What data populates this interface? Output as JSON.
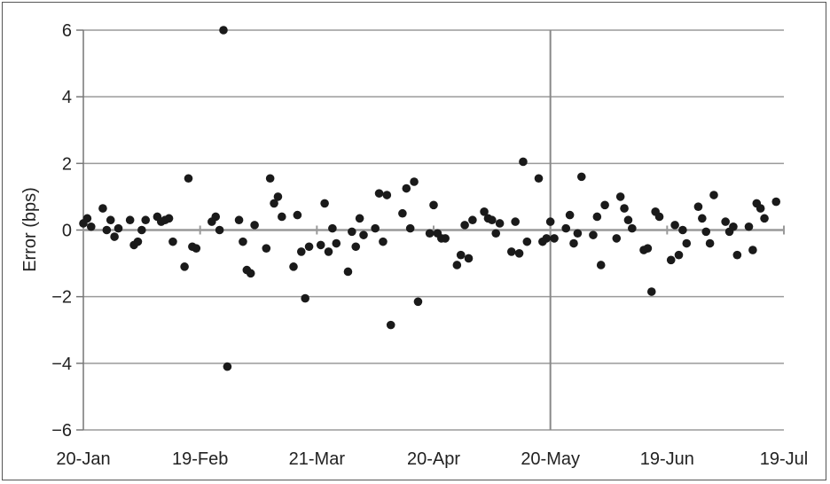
{
  "chart_data": {
    "type": "scatter",
    "title": "",
    "xlabel": "",
    "ylabel": "Error (bps)",
    "ylim": [
      -6,
      6
    ],
    "yticks": [
      6,
      4,
      2,
      0,
      -2,
      -4,
      -6
    ],
    "ytick_labels": [
      "6",
      "4",
      "2",
      "0",
      "−2",
      "−4",
      "−6"
    ],
    "xlim": [
      "2014-01-20",
      "2014-07-19"
    ],
    "xtick_dates": [
      "2014-01-20",
      "2014-02-19",
      "2014-03-21",
      "2014-04-20",
      "2014-05-20",
      "2014-06-19",
      "2014-07-19"
    ],
    "xtick_labels": [
      "20-Jan",
      "19-Feb",
      "21-Mar",
      "20-Apr",
      "20-May",
      "19-Jun",
      "19-Jul"
    ],
    "vertical_marker_date": "2014-05-20",
    "grid": "horizontal",
    "marker_color": "#1a1a1a",
    "grid_color": "#9a9a9a",
    "points": [
      {
        "x": "2014-01-20",
        "y": 0.2
      },
      {
        "x": "2014-01-21",
        "y": 0.35
      },
      {
        "x": "2014-01-22",
        "y": 0.1
      },
      {
        "x": "2014-01-25",
        "y": 0.65
      },
      {
        "x": "2014-01-26",
        "y": 0.0
      },
      {
        "x": "2014-01-27",
        "y": 0.3
      },
      {
        "x": "2014-01-28",
        "y": -0.2
      },
      {
        "x": "2014-01-29",
        "y": 0.05
      },
      {
        "x": "2014-02-01",
        "y": 0.3
      },
      {
        "x": "2014-02-02",
        "y": -0.45
      },
      {
        "x": "2014-02-03",
        "y": -0.35
      },
      {
        "x": "2014-02-04",
        "y": 0.0
      },
      {
        "x": "2014-02-05",
        "y": 0.3
      },
      {
        "x": "2014-02-08",
        "y": 0.4
      },
      {
        "x": "2014-02-09",
        "y": 0.25
      },
      {
        "x": "2014-02-10",
        "y": 0.3
      },
      {
        "x": "2014-02-11",
        "y": 0.35
      },
      {
        "x": "2014-02-12",
        "y": -0.35
      },
      {
        "x": "2014-02-15",
        "y": -1.1
      },
      {
        "x": "2014-02-16",
        "y": 1.55
      },
      {
        "x": "2014-02-17",
        "y": -0.5
      },
      {
        "x": "2014-02-18",
        "y": -0.55
      },
      {
        "x": "2014-02-22",
        "y": 0.25
      },
      {
        "x": "2014-02-23",
        "y": 0.4
      },
      {
        "x": "2014-02-24",
        "y": 0.0
      },
      {
        "x": "2014-02-25",
        "y": 6.0
      },
      {
        "x": "2014-02-26",
        "y": -4.1
      },
      {
        "x": "2014-03-01",
        "y": 0.3
      },
      {
        "x": "2014-03-02",
        "y": -0.35
      },
      {
        "x": "2014-03-03",
        "y": -1.2
      },
      {
        "x": "2014-03-04",
        "y": -1.3
      },
      {
        "x": "2014-03-05",
        "y": 0.15
      },
      {
        "x": "2014-03-08",
        "y": -0.55
      },
      {
        "x": "2014-03-09",
        "y": 1.55
      },
      {
        "x": "2014-03-10",
        "y": 0.8
      },
      {
        "x": "2014-03-11",
        "y": 1.0
      },
      {
        "x": "2014-03-12",
        "y": 0.4
      },
      {
        "x": "2014-03-15",
        "y": -1.1
      },
      {
        "x": "2014-03-16",
        "y": 0.45
      },
      {
        "x": "2014-03-17",
        "y": -0.65
      },
      {
        "x": "2014-03-18",
        "y": -2.05
      },
      {
        "x": "2014-03-19",
        "y": -0.5
      },
      {
        "x": "2014-03-22",
        "y": -0.45
      },
      {
        "x": "2014-03-23",
        "y": 0.8
      },
      {
        "x": "2014-03-24",
        "y": -0.65
      },
      {
        "x": "2014-03-25",
        "y": 0.05
      },
      {
        "x": "2014-03-26",
        "y": -0.4
      },
      {
        "x": "2014-03-29",
        "y": -1.25
      },
      {
        "x": "2014-03-30",
        "y": -0.05
      },
      {
        "x": "2014-03-31",
        "y": -0.5
      },
      {
        "x": "2014-04-01",
        "y": 0.35
      },
      {
        "x": "2014-04-02",
        "y": -0.15
      },
      {
        "x": "2014-04-05",
        "y": 0.05
      },
      {
        "x": "2014-04-06",
        "y": 1.1
      },
      {
        "x": "2014-04-07",
        "y": -0.35
      },
      {
        "x": "2014-04-08",
        "y": 1.05
      },
      {
        "x": "2014-04-09",
        "y": -2.85
      },
      {
        "x": "2014-04-12",
        "y": 0.5
      },
      {
        "x": "2014-04-13",
        "y": 1.25
      },
      {
        "x": "2014-04-14",
        "y": 0.05
      },
      {
        "x": "2014-04-15",
        "y": 1.45
      },
      {
        "x": "2014-04-16",
        "y": -2.15
      },
      {
        "x": "2014-04-19",
        "y": -0.1
      },
      {
        "x": "2014-04-20",
        "y": 0.75
      },
      {
        "x": "2014-04-21",
        "y": -0.1
      },
      {
        "x": "2014-04-22",
        "y": -0.25
      },
      {
        "x": "2014-04-23",
        "y": -0.25
      },
      {
        "x": "2014-04-26",
        "y": -1.05
      },
      {
        "x": "2014-04-27",
        "y": -0.75
      },
      {
        "x": "2014-04-28",
        "y": 0.15
      },
      {
        "x": "2014-04-29",
        "y": -0.85
      },
      {
        "x": "2014-04-30",
        "y": 0.3
      },
      {
        "x": "2014-05-03",
        "y": 0.55
      },
      {
        "x": "2014-05-04",
        "y": 0.35
      },
      {
        "x": "2014-05-05",
        "y": 0.3
      },
      {
        "x": "2014-05-06",
        "y": -0.1
      },
      {
        "x": "2014-05-07",
        "y": 0.2
      },
      {
        "x": "2014-05-10",
        "y": -0.65
      },
      {
        "x": "2014-05-11",
        "y": 0.25
      },
      {
        "x": "2014-05-12",
        "y": -0.7
      },
      {
        "x": "2014-05-13",
        "y": 2.05
      },
      {
        "x": "2014-05-14",
        "y": -0.35
      },
      {
        "x": "2014-05-17",
        "y": 1.55
      },
      {
        "x": "2014-05-18",
        "y": -0.35
      },
      {
        "x": "2014-05-19",
        "y": -0.25
      },
      {
        "x": "2014-05-20",
        "y": 0.25
      },
      {
        "x": "2014-05-21",
        "y": -0.25
      },
      {
        "x": "2014-05-24",
        "y": 0.05
      },
      {
        "x": "2014-05-25",
        "y": 0.45
      },
      {
        "x": "2014-05-26",
        "y": -0.4
      },
      {
        "x": "2014-05-27",
        "y": -0.1
      },
      {
        "x": "2014-05-28",
        "y": 1.6
      },
      {
        "x": "2014-05-31",
        "y": -0.15
      },
      {
        "x": "2014-06-01",
        "y": 0.4
      },
      {
        "x": "2014-06-02",
        "y": -1.05
      },
      {
        "x": "2014-06-03",
        "y": 0.75
      },
      {
        "x": "2014-06-06",
        "y": -0.25
      },
      {
        "x": "2014-06-07",
        "y": 1.0
      },
      {
        "x": "2014-06-08",
        "y": 0.65
      },
      {
        "x": "2014-06-09",
        "y": 0.3
      },
      {
        "x": "2014-06-10",
        "y": 0.05
      },
      {
        "x": "2014-06-13",
        "y": -0.6
      },
      {
        "x": "2014-06-14",
        "y": -0.55
      },
      {
        "x": "2014-06-15",
        "y": -1.85
      },
      {
        "x": "2014-06-16",
        "y": 0.55
      },
      {
        "x": "2014-06-17",
        "y": 0.4
      },
      {
        "x": "2014-06-20",
        "y": -0.9
      },
      {
        "x": "2014-06-21",
        "y": 0.15
      },
      {
        "x": "2014-06-22",
        "y": -0.75
      },
      {
        "x": "2014-06-23",
        "y": 0.0
      },
      {
        "x": "2014-06-24",
        "y": -0.4
      },
      {
        "x": "2014-06-27",
        "y": 0.7
      },
      {
        "x": "2014-06-28",
        "y": 0.35
      },
      {
        "x": "2014-06-29",
        "y": -0.05
      },
      {
        "x": "2014-06-30",
        "y": -0.4
      },
      {
        "x": "2014-07-01",
        "y": 1.05
      },
      {
        "x": "2014-07-04",
        "y": 0.25
      },
      {
        "x": "2014-07-05",
        "y": -0.05
      },
      {
        "x": "2014-07-06",
        "y": 0.1
      },
      {
        "x": "2014-07-07",
        "y": -0.75
      },
      {
        "x": "2014-07-10",
        "y": 0.1
      },
      {
        "x": "2014-07-11",
        "y": -0.6
      },
      {
        "x": "2014-07-12",
        "y": 0.8
      },
      {
        "x": "2014-07-13",
        "y": 0.65
      },
      {
        "x": "2014-07-14",
        "y": 0.35
      },
      {
        "x": "2014-07-17",
        "y": 0.85
      }
    ]
  }
}
